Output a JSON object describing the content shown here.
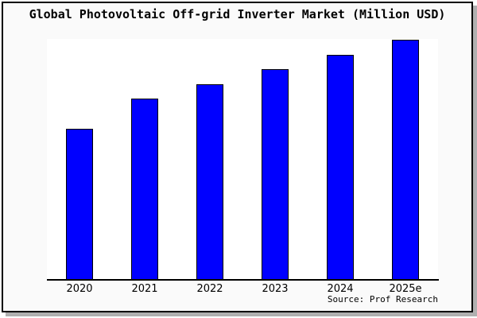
{
  "window": {
    "background": "#ffffff",
    "card_background": "#fafafa",
    "card_border_color": "#000000",
    "shadow_color": "#b0b0b0"
  },
  "chart_data": {
    "type": "bar",
    "title": "Global Photovoltaic Off-grid Inverter Market (Million USD)",
    "categories": [
      "2020",
      "2021",
      "2022",
      "2023",
      "2024",
      "2025e"
    ],
    "values": [
      62.8,
      75.4,
      81.4,
      87.7,
      93.7,
      100
    ],
    "xlabel": "",
    "ylabel": "",
    "ylim": [
      0,
      100.3
    ],
    "grid": false,
    "legend": false,
    "y_axis_labels_shown": false,
    "note": "Chart shows no y-axis scale; values are relative bar heights indexed to 2025e = 100.",
    "bar_color": "#0000ff",
    "bar_border_color": "#000000",
    "plot_background": "#ffffff",
    "axis_color": "#000000",
    "source": "Source: Prof Research"
  }
}
